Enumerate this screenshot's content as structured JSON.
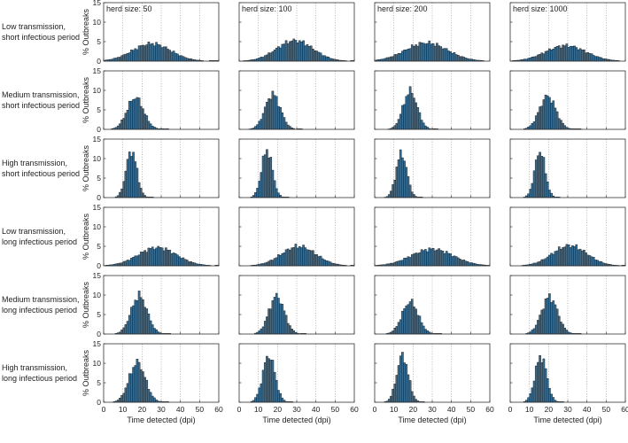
{
  "figure": {
    "ylabel": "% Outbreaks",
    "xlabel": "Time detected (dpi)",
    "herd_prefix": "herd size: ",
    "bar_color": "#3a6f95",
    "bar_edge": "#1b1b1b",
    "grid_color": "#9a9a9a"
  },
  "chart_data": {
    "type": "bar",
    "kind": "histogram-grid",
    "xlim": [
      0,
      60
    ],
    "ylim": [
      0,
      15
    ],
    "xticks": [
      0,
      10,
      20,
      30,
      40,
      50,
      60
    ],
    "yticks": [
      0,
      5,
      10,
      15
    ],
    "bin_width": 1,
    "grid": "x-dotted",
    "columns": [
      "50",
      "100",
      "200",
      "1000"
    ],
    "rows": [
      {
        "label": [
          "Low transmission,",
          "short infectious period"
        ],
        "dists": [
          {
            "c": 25,
            "s": 10,
            "p": 4.5
          },
          {
            "c": 29,
            "s": 9.5,
            "p": 5.3
          },
          {
            "c": 27,
            "s": 11,
            "p": 4.7
          },
          {
            "c": 29,
            "s": 10.5,
            "p": 4.0
          }
        ]
      },
      {
        "label": [
          "Medium transmission,",
          "short infectious period"
        ],
        "dists": [
          {
            "c": 16.5,
            "s": 4.3,
            "p": 8.2
          },
          {
            "c": 17.5,
            "s": 4.0,
            "p": 9.0
          },
          {
            "c": 18.5,
            "s": 3.7,
            "p": 9.8
          },
          {
            "c": 19.5,
            "s": 4.3,
            "p": 8.5
          }
        ]
      },
      {
        "label": [
          "High transmission,",
          "short infectious period"
        ],
        "dists": [
          {
            "c": 14.5,
            "s": 2.8,
            "p": 12.0
          },
          {
            "c": 14.5,
            "s": 2.8,
            "p": 12.2
          },
          {
            "c": 14.0,
            "s": 2.8,
            "p": 11.3
          },
          {
            "c": 15.5,
            "s": 2.7,
            "p": 12.0
          }
        ]
      },
      {
        "label": [
          "Low transmission,",
          "long infectious period"
        ],
        "dists": [
          {
            "c": 28,
            "s": 10,
            "p": 4.7
          },
          {
            "c": 31,
            "s": 9,
            "p": 5.0
          },
          {
            "c": 30,
            "s": 11,
            "p": 4.3
          },
          {
            "c": 31,
            "s": 9,
            "p": 5.2
          }
        ]
      },
      {
        "label": [
          "Medium transmission,",
          "long infectious period"
        ],
        "dists": [
          {
            "c": 18.5,
            "s": 4.2,
            "p": 9.8
          },
          {
            "c": 19.5,
            "s": 4.0,
            "p": 9.7
          },
          {
            "c": 18.5,
            "s": 4.2,
            "p": 8.3
          },
          {
            "c": 20.5,
            "s": 4.2,
            "p": 9.5
          }
        ]
      },
      {
        "label": [
          "High transmission,",
          "long infectious period"
        ],
        "dists": [
          {
            "c": 17.5,
            "s": 4.2,
            "p": 10.2
          },
          {
            "c": 15.5,
            "s": 3.2,
            "p": 12.0
          },
          {
            "c": 14.5,
            "s": 3.0,
            "p": 12.0
          },
          {
            "c": 16.0,
            "s": 3.0,
            "p": 11.8
          }
        ]
      }
    ]
  }
}
